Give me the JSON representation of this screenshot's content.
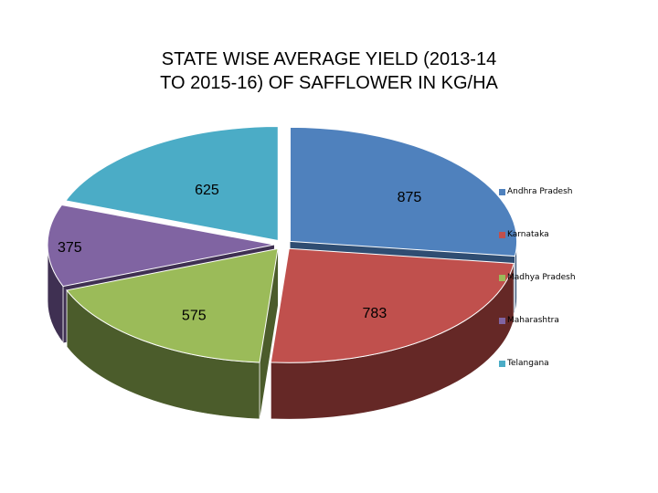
{
  "title_line1": "STATE WISE AVERAGE YIELD (2013-14",
  "title_line2": "TO 2015-16) OF SAFFLOWER IN KG/HA",
  "chart_data": {
    "type": "pie",
    "title": "STATE WISE AVERAGE YIELD (2013-14 TO 2015-16) OF SAFFLOWER IN KG/HA",
    "categories": [
      "Andhra Pradesh",
      "Karnataka",
      "Madhya Pradesh",
      "Maharashtra",
      "Telangana"
    ],
    "values": [
      875,
      783,
      575,
      375,
      625
    ],
    "data_labels": [
      "875",
      "783",
      "575",
      "375",
      "625"
    ],
    "colors": [
      "#4f81bd",
      "#c0504d",
      "#9bbb59",
      "#8064a2",
      "#4bacc6"
    ],
    "side_colors": [
      "#2f4d72",
      "#652826",
      "#4b5c2b",
      "#3f3052",
      "#25626f"
    ],
    "legend_position": "right",
    "style": "3d-exploded"
  }
}
